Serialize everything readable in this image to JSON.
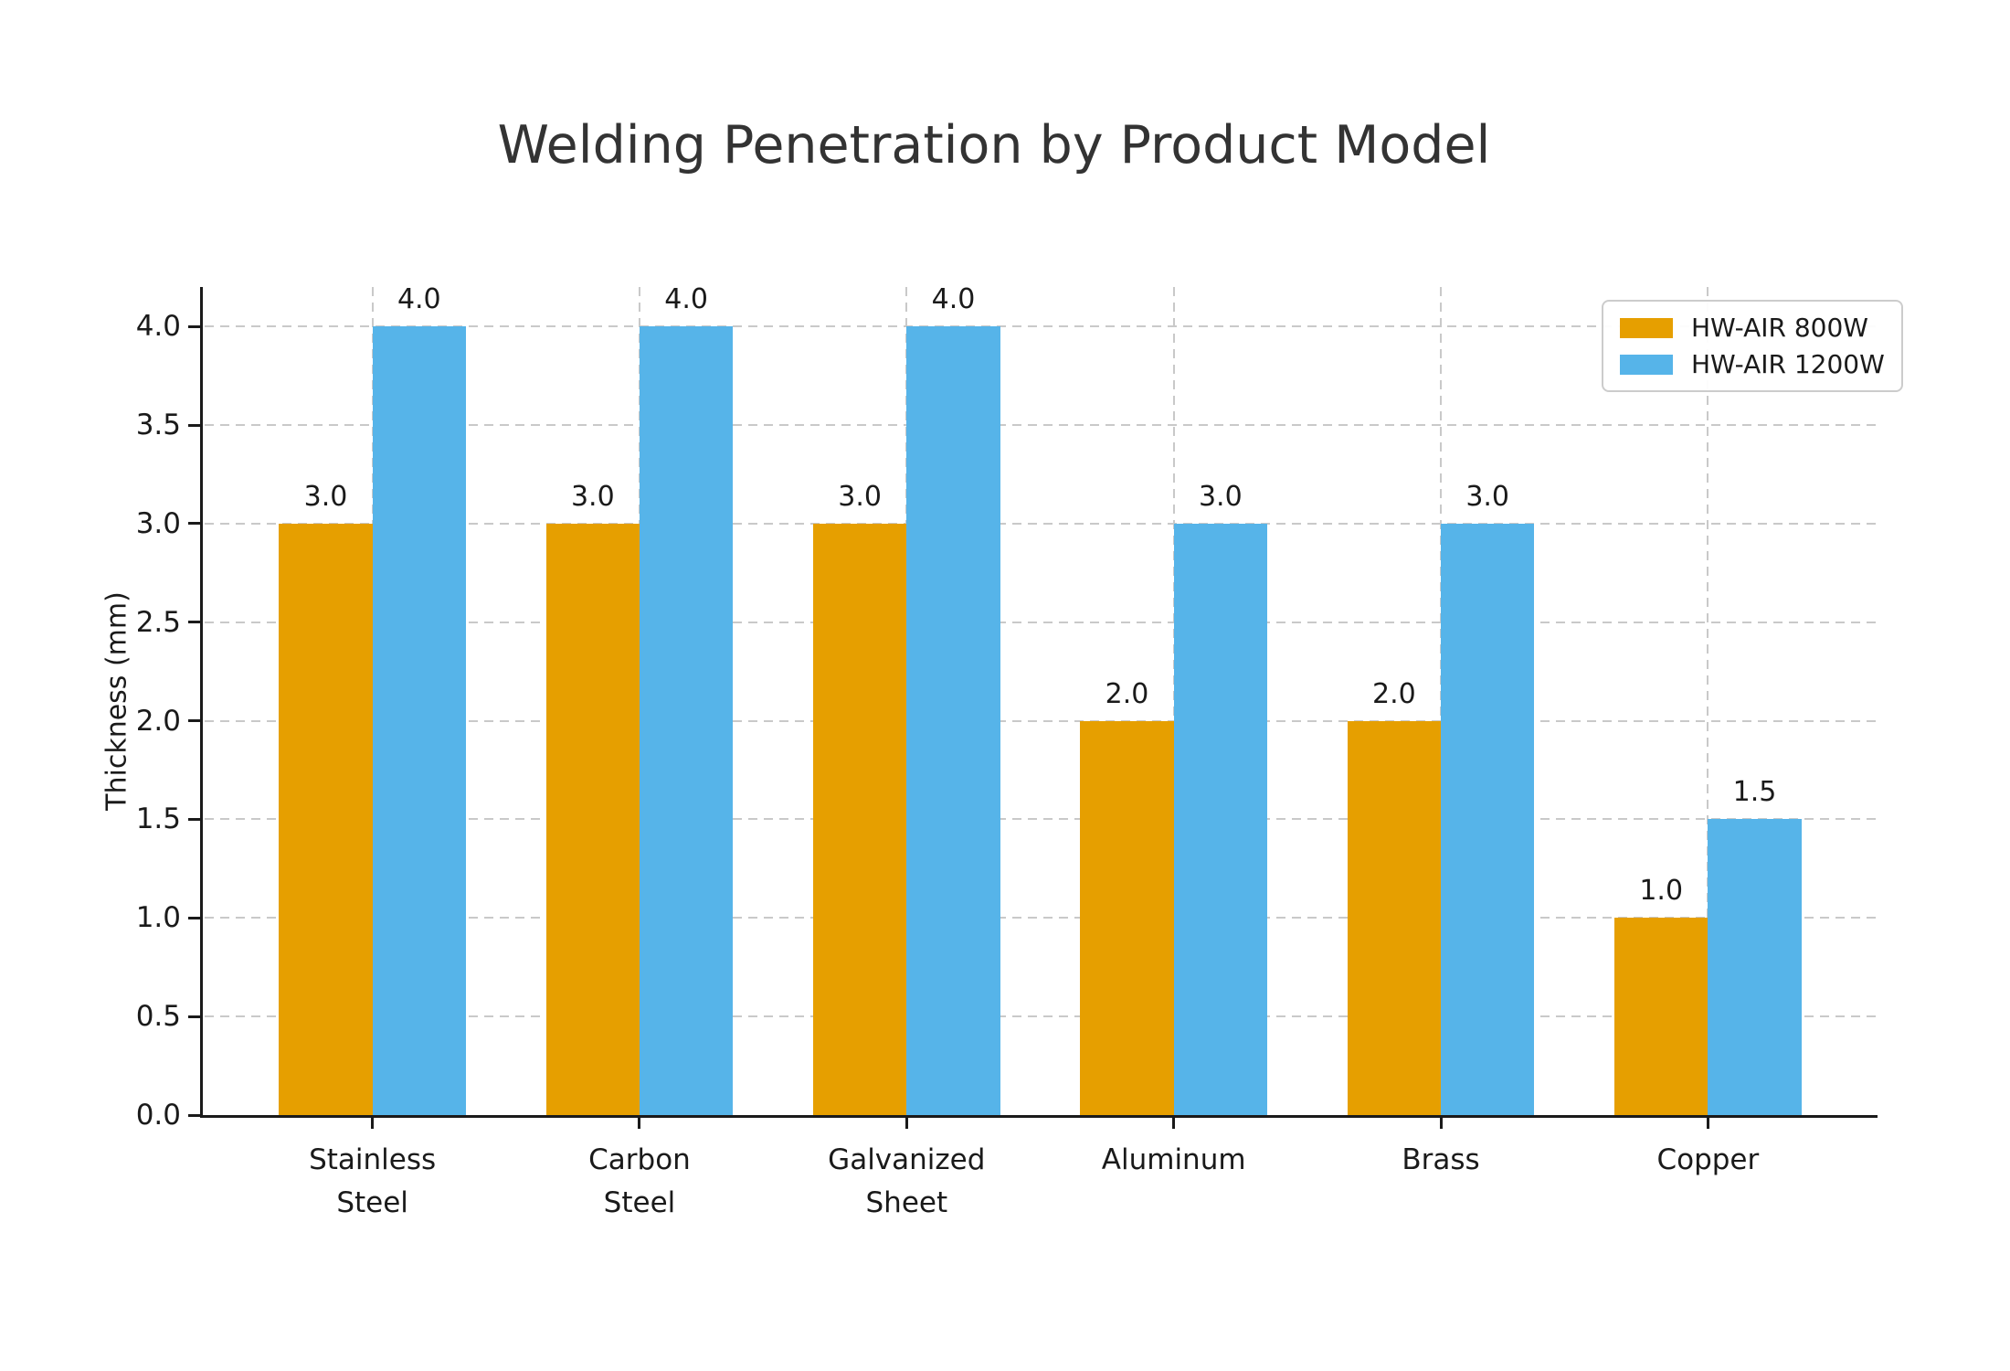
{
  "chart_data": {
    "type": "bar",
    "title": "Welding Penetration by Product Model",
    "xlabel": "",
    "ylabel": "Thickness (mm)",
    "categories": [
      "Stainless\nSteel",
      "Carbon\nSteel",
      "Galvanized\nSheet",
      "Aluminum",
      "Brass",
      "Copper"
    ],
    "series": [
      {
        "name": "HW-AIR 800W",
        "color": "#E69F00",
        "values": [
          3.0,
          3.0,
          3.0,
          2.0,
          2.0,
          1.0
        ]
      },
      {
        "name": "HW-AIR 1200W",
        "color": "#56B4E9",
        "values": [
          4.0,
          4.0,
          4.0,
          3.0,
          3.0,
          1.5
        ]
      }
    ],
    "bar_value_labels": [
      [
        "3.0",
        "3.0",
        "3.0",
        "2.0",
        "2.0",
        "1.0"
      ],
      [
        "4.0",
        "4.0",
        "4.0",
        "3.0",
        "3.0",
        "1.5"
      ]
    ],
    "yticks": [
      0.0,
      0.5,
      1.0,
      1.5,
      2.0,
      2.5,
      3.0,
      3.5,
      4.0
    ],
    "ytick_labels": [
      "0.0",
      "0.5",
      "1.0",
      "1.5",
      "2.0",
      "2.5",
      "3.0",
      "3.5",
      "4.0"
    ],
    "ylim": [
      0,
      4.2
    ],
    "grid": true,
    "grid_style": "dashed",
    "legend_position": "upper right",
    "colors": {
      "grid": "#c9c9c9",
      "axis": "#1a1a1a",
      "text": "#1a1a1a",
      "title": "#333333",
      "legend_border": "#cccccc",
      "background": "#ffffff"
    }
  }
}
